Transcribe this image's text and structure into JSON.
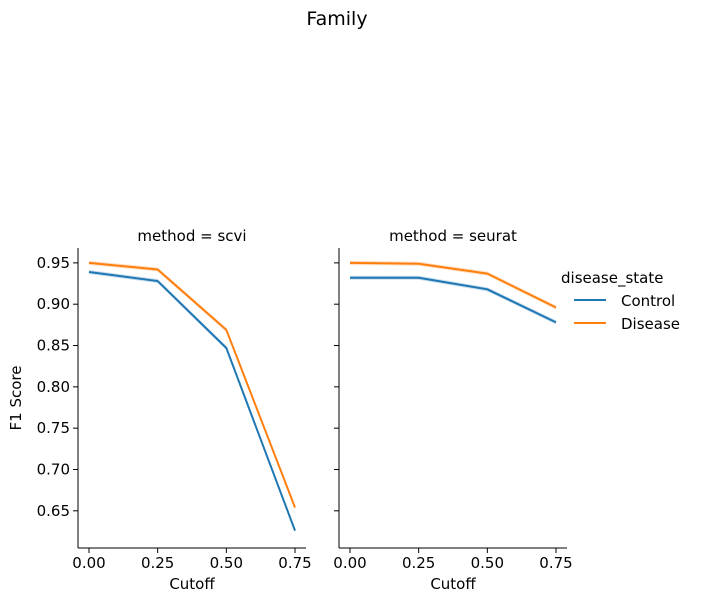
{
  "figure": {
    "title": "Family",
    "legend": {
      "title": "disease_state",
      "placement": "right",
      "entries": [
        {
          "label": "Control",
          "color": "#1f77b4"
        },
        {
          "label": "Disease",
          "color": "#ff7f0e"
        }
      ]
    }
  },
  "chart_data": [
    {
      "type": "line",
      "title": "method = scvi",
      "xlabel": "Cutoff",
      "ylabel": "F1 Score",
      "xlim": [
        -0.04,
        0.79
      ],
      "ylim": [
        0.605,
        0.968
      ],
      "xticks": [
        "0.00",
        "0.25",
        "0.50",
        "0.75"
      ],
      "yticks": [
        "0.65",
        "0.70",
        "0.75",
        "0.80",
        "0.85",
        "0.90",
        "0.95"
      ],
      "grid": false,
      "x": [
        0.0,
        0.25,
        0.5,
        0.75
      ],
      "series": [
        {
          "name": "Control",
          "color": "#1f77b4",
          "values": [
            0.939,
            0.928,
            0.847,
            0.626
          ]
        },
        {
          "name": "Disease",
          "color": "#ff7f0e",
          "values": [
            0.95,
            0.942,
            0.869,
            0.654
          ]
        }
      ]
    },
    {
      "type": "line",
      "title": "method = seurat",
      "xlabel": "Cutoff",
      "ylabel": "",
      "xlim": [
        -0.04,
        0.79
      ],
      "ylim": [
        0.605,
        0.968
      ],
      "xticks": [
        "0.00",
        "0.25",
        "0.50",
        "0.75"
      ],
      "yticks": [],
      "grid": false,
      "x": [
        0.0,
        0.25,
        0.5,
        0.75
      ],
      "series": [
        {
          "name": "Control",
          "color": "#1f77b4",
          "values": [
            0.932,
            0.932,
            0.918,
            0.878
          ]
        },
        {
          "name": "Disease",
          "color": "#ff7f0e",
          "values": [
            0.95,
            0.949,
            0.937,
            0.896
          ]
        }
      ]
    }
  ]
}
